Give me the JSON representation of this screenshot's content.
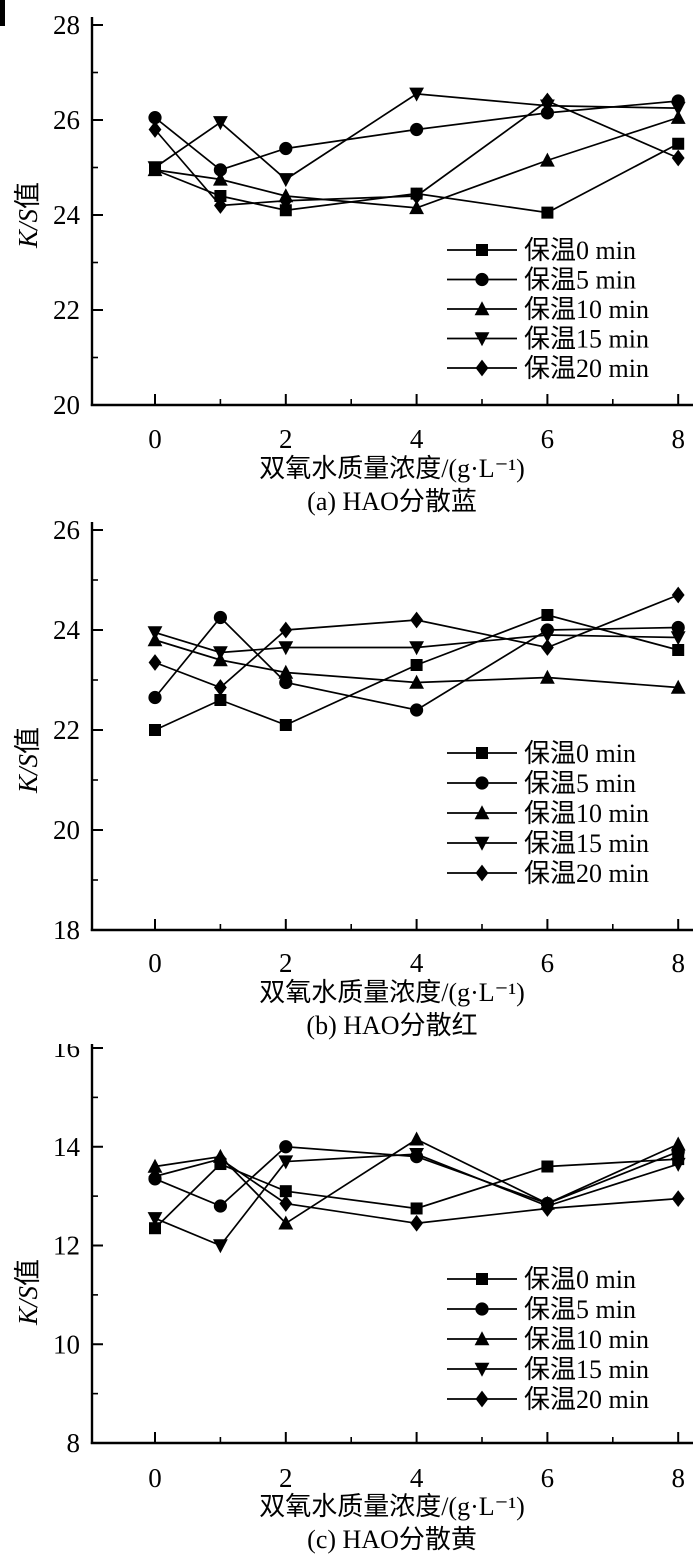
{
  "page": {
    "background": "#ffffff",
    "ink": "#000000"
  },
  "chart_data": [
    {
      "type": "line",
      "id": "a",
      "caption": "(a) HAO分散蓝",
      "xlabel": "双氧水质量浓度/(g·L⁻¹)",
      "ylabel": "K/S值",
      "ylabel_italic": "K/S",
      "ylabel_cjk": "值",
      "x": [
        0,
        1,
        2,
        4,
        6,
        8
      ],
      "xticks": [
        0,
        2,
        4,
        6,
        8
      ],
      "xlim": [
        -1,
        8.3
      ],
      "ylim": [
        20,
        28
      ],
      "yticks": [
        20,
        22,
        24,
        26,
        28
      ],
      "grid": false,
      "legend_position": "right-middle",
      "line_color": "#000000",
      "series": [
        {
          "name": "保温0 min",
          "marker": "square",
          "values": [
            24.95,
            24.4,
            24.1,
            24.45,
            24.05,
            25.5
          ]
        },
        {
          "name": "保温5 min",
          "marker": "circle",
          "values": [
            26.05,
            24.95,
            25.4,
            25.8,
            26.15,
            26.4
          ]
        },
        {
          "name": "保温10 min",
          "marker": "triangle-up",
          "values": [
            24.95,
            24.75,
            24.4,
            24.15,
            25.15,
            26.05
          ]
        },
        {
          "name": "保温15 min",
          "marker": "triangle-down",
          "values": [
            25.0,
            25.95,
            24.75,
            26.55,
            26.3,
            26.25
          ]
        },
        {
          "name": "保温20 min",
          "marker": "diamond",
          "values": [
            25.8,
            24.2,
            24.3,
            24.4,
            26.4,
            25.2
          ]
        }
      ]
    },
    {
      "type": "line",
      "id": "b",
      "caption": "(b) HAO分散红",
      "xlabel": "双氧水质量浓度/(g·L⁻¹)",
      "ylabel": "K/S值",
      "ylabel_italic": "K/S",
      "ylabel_cjk": "值",
      "x": [
        0,
        1,
        2,
        4,
        6,
        8
      ],
      "xticks": [
        0,
        2,
        4,
        6,
        8
      ],
      "xlim": [
        -1,
        8.3
      ],
      "ylim": [
        18,
        26
      ],
      "yticks": [
        18,
        20,
        22,
        24,
        26
      ],
      "grid": false,
      "legend_position": "right-middle",
      "line_color": "#000000",
      "series": [
        {
          "name": "保温0 min",
          "marker": "square",
          "values": [
            22.0,
            22.6,
            22.1,
            23.3,
            24.3,
            23.6
          ]
        },
        {
          "name": "保温5 min",
          "marker": "circle",
          "values": [
            22.65,
            24.25,
            22.95,
            22.4,
            24.0,
            24.05
          ]
        },
        {
          "name": "保温10 min",
          "marker": "triangle-up",
          "values": [
            23.8,
            23.4,
            23.15,
            22.95,
            23.05,
            22.85
          ]
        },
        {
          "name": "保温15 min",
          "marker": "triangle-down",
          "values": [
            23.95,
            23.55,
            23.65,
            23.65,
            23.9,
            23.85
          ]
        },
        {
          "name": "保温20 min",
          "marker": "diamond",
          "values": [
            23.35,
            22.85,
            24.0,
            24.2,
            23.65,
            24.7
          ]
        }
      ]
    },
    {
      "type": "line",
      "id": "c",
      "caption": "(c) HAO分散黄",
      "xlabel": "双氧水质量浓度/(g·L⁻¹)",
      "ylabel": "K/S值",
      "ylabel_italic": "K/S",
      "ylabel_cjk": "值",
      "x": [
        0,
        1,
        2,
        4,
        6,
        8
      ],
      "xticks": [
        0,
        2,
        4,
        6,
        8
      ],
      "xlim": [
        -1,
        8.3
      ],
      "ylim": [
        8,
        16
      ],
      "yticks": [
        8,
        10,
        12,
        14,
        16
      ],
      "grid": false,
      "legend_position": "right-middle",
      "line_color": "#000000",
      "series": [
        {
          "name": "保温0 min",
          "marker": "square",
          "values": [
            12.35,
            13.65,
            13.1,
            12.75,
            13.6,
            13.75
          ]
        },
        {
          "name": "保温5 min",
          "marker": "circle",
          "values": [
            13.35,
            12.8,
            14.0,
            13.8,
            12.85,
            13.9
          ]
        },
        {
          "name": "保温10 min",
          "marker": "triangle-up",
          "values": [
            13.6,
            13.8,
            12.45,
            14.15,
            12.85,
            14.05
          ]
        },
        {
          "name": "保温15 min",
          "marker": "triangle-down",
          "values": [
            12.55,
            12.0,
            13.7,
            13.85,
            12.8,
            13.65
          ]
        },
        {
          "name": "保温20 min",
          "marker": "diamond",
          "values": [
            13.4,
            13.75,
            12.85,
            12.45,
            12.75,
            12.95
          ]
        }
      ]
    }
  ]
}
